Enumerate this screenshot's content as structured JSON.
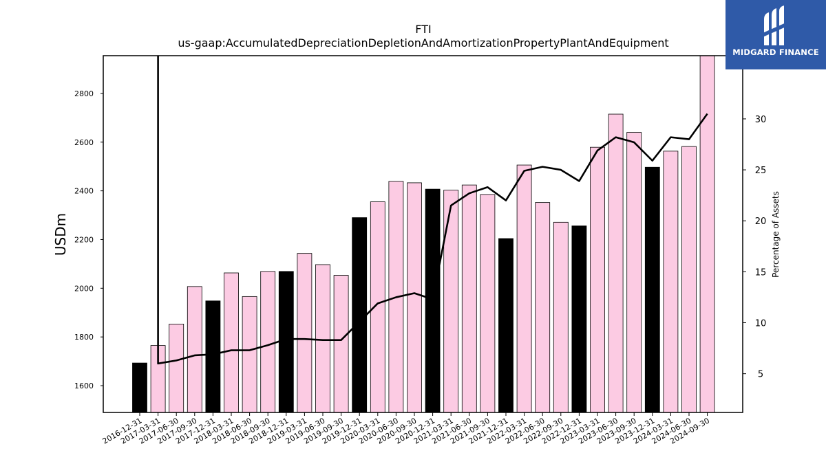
{
  "chart_data": {
    "type": "bar",
    "title": "FTI",
    "subtitle": "us-gaap:AccumulatedDepreciationDepletionAndAmortizationPropertyPlantAndEquipment",
    "ylabel": "USDm",
    "y2label": "Percentage of Assets",
    "categories": [
      "2016-12-31",
      "2017-03-31",
      "2017-06-30",
      "2017-09-30",
      "2017-12-31",
      "2018-03-31",
      "2018-06-30",
      "2018-09-30",
      "2018-12-31",
      "2019-03-31",
      "2019-06-30",
      "2019-09-30",
      "2019-12-31",
      "2020-03-31",
      "2020-06-30",
      "2020-09-30",
      "2020-12-31",
      "2021-03-31",
      "2021-06-30",
      "2021-09-30",
      "2021-12-31",
      "2022-03-31",
      "2022-06-30",
      "2022-09-30",
      "2022-12-31",
      "2023-03-31",
      "2023-06-30",
      "2023-09-30",
      "2023-12-31",
      "2024-03-31",
      "2024-06-30",
      "2024-09-30"
    ],
    "series": [
      {
        "kind": "bar",
        "values": [
          1693,
          1765,
          1853,
          2007,
          1948,
          2063,
          1966,
          2069,
          2069,
          2143,
          2097,
          2053,
          2290,
          2355,
          2439,
          2433,
          2407,
          2403,
          2424,
          2385,
          2204,
          2506,
          2352,
          2271,
          2256,
          2579,
          2715,
          2640,
          2497,
          2563,
          2582,
          2955
        ],
        "annual_flags": [
          true,
          false,
          false,
          false,
          true,
          false,
          false,
          false,
          true,
          false,
          false,
          false,
          true,
          false,
          false,
          false,
          true,
          false,
          false,
          false,
          true,
          false,
          false,
          false,
          true,
          false,
          false,
          false,
          true,
          false,
          false,
          false
        ]
      },
      {
        "kind": "line",
        "axis": "right",
        "values": [
          null,
          6.0,
          6.3,
          6.8,
          6.9,
          7.3,
          7.3,
          7.8,
          8.4,
          8.4,
          8.3,
          8.3,
          10.1,
          11.9,
          12.5,
          12.9,
          12.3,
          21.5,
          22.7,
          23.3,
          22.0,
          24.9,
          25.3,
          25.0,
          23.9,
          26.9,
          28.2,
          27.7,
          25.9,
          28.2,
          28.0,
          30.5
        ]
      }
    ],
    "y_ticks": [
      1600,
      1800,
      2000,
      2200,
      2400,
      2600,
      2800
    ],
    "y2_ticks": [
      5,
      10,
      15,
      20,
      25,
      30
    ],
    "ylim": [
      1490,
      2955
    ],
    "y2lim": [
      1.2,
      36.2
    ],
    "grid": false,
    "colors": {
      "annual_bar": "#000000",
      "quarter_bar": "#fccbe3",
      "bar_edge": "#000000",
      "line": "#000000"
    }
  },
  "logo": {
    "text": "MIDGARD FINANCE",
    "background": "#2f5aa8",
    "icon": "midgard-logo-icon"
  }
}
